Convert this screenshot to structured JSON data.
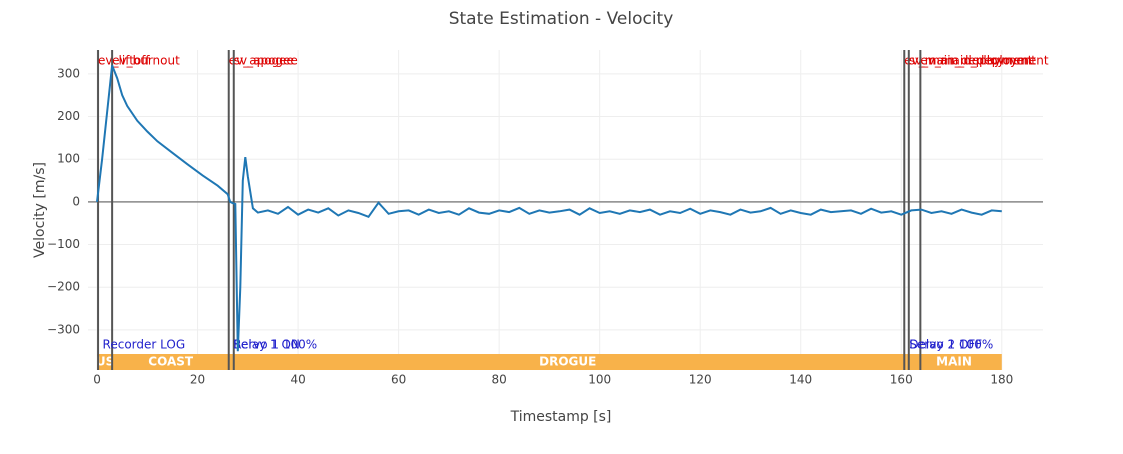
{
  "chart_data": {
    "type": "line",
    "title": "State Estimation - Velocity",
    "x_label": "Timestamp [s]",
    "y_label": "Velocity [m/s]",
    "xlim": [
      -1.8,
      188.2
    ],
    "ylim": [
      -394,
      356
    ],
    "xticks": [
      0,
      20,
      40,
      60,
      80,
      100,
      120,
      140,
      160,
      180
    ],
    "yticks": [
      {
        "value": -300,
        "label": "−300"
      },
      {
        "value": -200,
        "label": "−200"
      },
      {
        "value": -100,
        "label": "−100"
      },
      0,
      100,
      200,
      300
    ],
    "grid": true,
    "x": [
      0,
      1,
      2,
      3,
      4,
      5,
      6,
      8,
      10,
      12,
      15,
      18,
      21,
      24,
      26,
      26.5,
      27,
      27.5,
      28,
      28.5,
      29,
      29.5,
      30,
      31,
      32,
      34,
      36,
      38,
      40,
      42,
      44,
      46,
      48,
      50,
      52,
      54,
      56,
      58,
      60,
      62,
      64,
      66,
      68,
      70,
      72,
      74,
      76,
      78,
      80,
      82,
      84,
      86,
      88,
      90,
      92,
      94,
      96,
      98,
      100,
      102,
      104,
      106,
      108,
      110,
      112,
      114,
      116,
      118,
      120,
      122,
      124,
      126,
      128,
      130,
      132,
      134,
      136,
      138,
      140,
      142,
      144,
      146,
      148,
      150,
      152,
      154,
      156,
      158,
      160,
      162,
      164,
      166,
      168,
      170,
      172,
      174,
      176,
      178,
      180
    ],
    "series": [
      {
        "name": "Velocity",
        "color": "#1f77b4",
        "values": [
          0,
          100,
          210,
          320,
          290,
          250,
          225,
          190,
          165,
          142,
          115,
          88,
          62,
          38,
          18,
          0,
          -3,
          -5,
          -350,
          -200,
          50,
          105,
          60,
          -15,
          -25,
          -20,
          -28,
          -12,
          -30,
          -18,
          -25,
          -15,
          -32,
          -20,
          -26,
          -35,
          -2,
          -28,
          -22,
          -20,
          -30,
          -18,
          -26,
          -22,
          -30,
          -15,
          -25,
          -28,
          -20,
          -24,
          -14,
          -28,
          -20,
          -25,
          -22,
          -18,
          -30,
          -15,
          -26,
          -22,
          -28,
          -20,
          -24,
          -18,
          -30,
          -22,
          -26,
          -16,
          -28,
          -20,
          -24,
          -30,
          -18,
          -25,
          -22,
          -14,
          -28,
          -20,
          -26,
          -30,
          -18,
          -24,
          -22,
          -20,
          -28,
          -16,
          -25,
          -22,
          -30,
          -20,
          -18,
          -26,
          -22,
          -28,
          -18,
          -25,
          -30,
          -20,
          -22
        ]
      }
    ],
    "events": [
      {
        "name": "ev_liftoff",
        "x": 0.2
      },
      {
        "name": "ev_burnout",
        "x": 3
      },
      {
        "name": "ev_apogee",
        "x": 26.2
      },
      {
        "name": "sv_apogee",
        "x": 27.2
      },
      {
        "name": "ev_main_deployment",
        "x": 160.6
      },
      {
        "name": "sv_main_deployment",
        "x": 161.5
      },
      {
        "name": "ev_main_deployment",
        "x": 163.8
      }
    ],
    "annotations": [
      {
        "text": "Recorder LOG",
        "x": 0.5
      },
      {
        "text": "Relay 1 ON",
        "x": 26.5
      },
      {
        "text": "Servo 1 100%",
        "x": 26.5
      },
      {
        "text": "Delay 1 OFF",
        "x": 161
      },
      {
        "text": "Servo 2 100%",
        "x": 161
      }
    ],
    "phases": [
      {
        "label": "RUST",
        "start": 0,
        "end": 3,
        "color": "#f8b24a"
      },
      {
        "label": "COAST",
        "start": 3,
        "end": 26.3,
        "color": "#f8b24a"
      },
      {
        "label": "DROGUE",
        "start": 26.3,
        "end": 161,
        "color": "#f8b24a"
      },
      {
        "label": "MAIN",
        "start": 161,
        "end": 180,
        "color": "#f8b24a"
      }
    ]
  }
}
